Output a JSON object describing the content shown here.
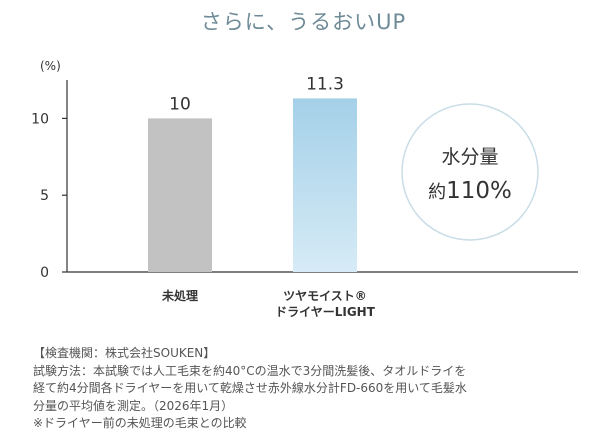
{
  "chart_data": {
    "type": "bar",
    "title": "さらに、うるおいUP",
    "unit_label": "(%)",
    "yticks": [
      0,
      5,
      10
    ],
    "ylim": [
      0,
      12.5
    ],
    "categories": [
      {
        "lines": [
          "未処理"
        ]
      },
      {
        "lines": [
          "ツヤモイスト®",
          "ドライヤーLIGHT"
        ]
      }
    ],
    "values": [
      10,
      11.3
    ],
    "value_labels": [
      "10",
      "11.3"
    ],
    "colors": [
      "#c2c2c2",
      "#a9d3ea"
    ],
    "legend": "none",
    "grid": false
  },
  "callout": {
    "line1": "水分量",
    "line2_prefix": "約",
    "line2_value": "110%"
  },
  "notes": [
    "【検査機関：株式会社SOUKEN】",
    "試験方法：本試験では人工毛束を約40°Cの温水で3分間洗髪後、タオルドライを",
    "経て約4分間各ドライヤーを用いて乾燥させ赤外線水分計FD-660を用いて毛髪水",
    "分量の平均値を測定。（2026年1月）",
    "※ドライヤー前の未処理の毛束との比較"
  ]
}
